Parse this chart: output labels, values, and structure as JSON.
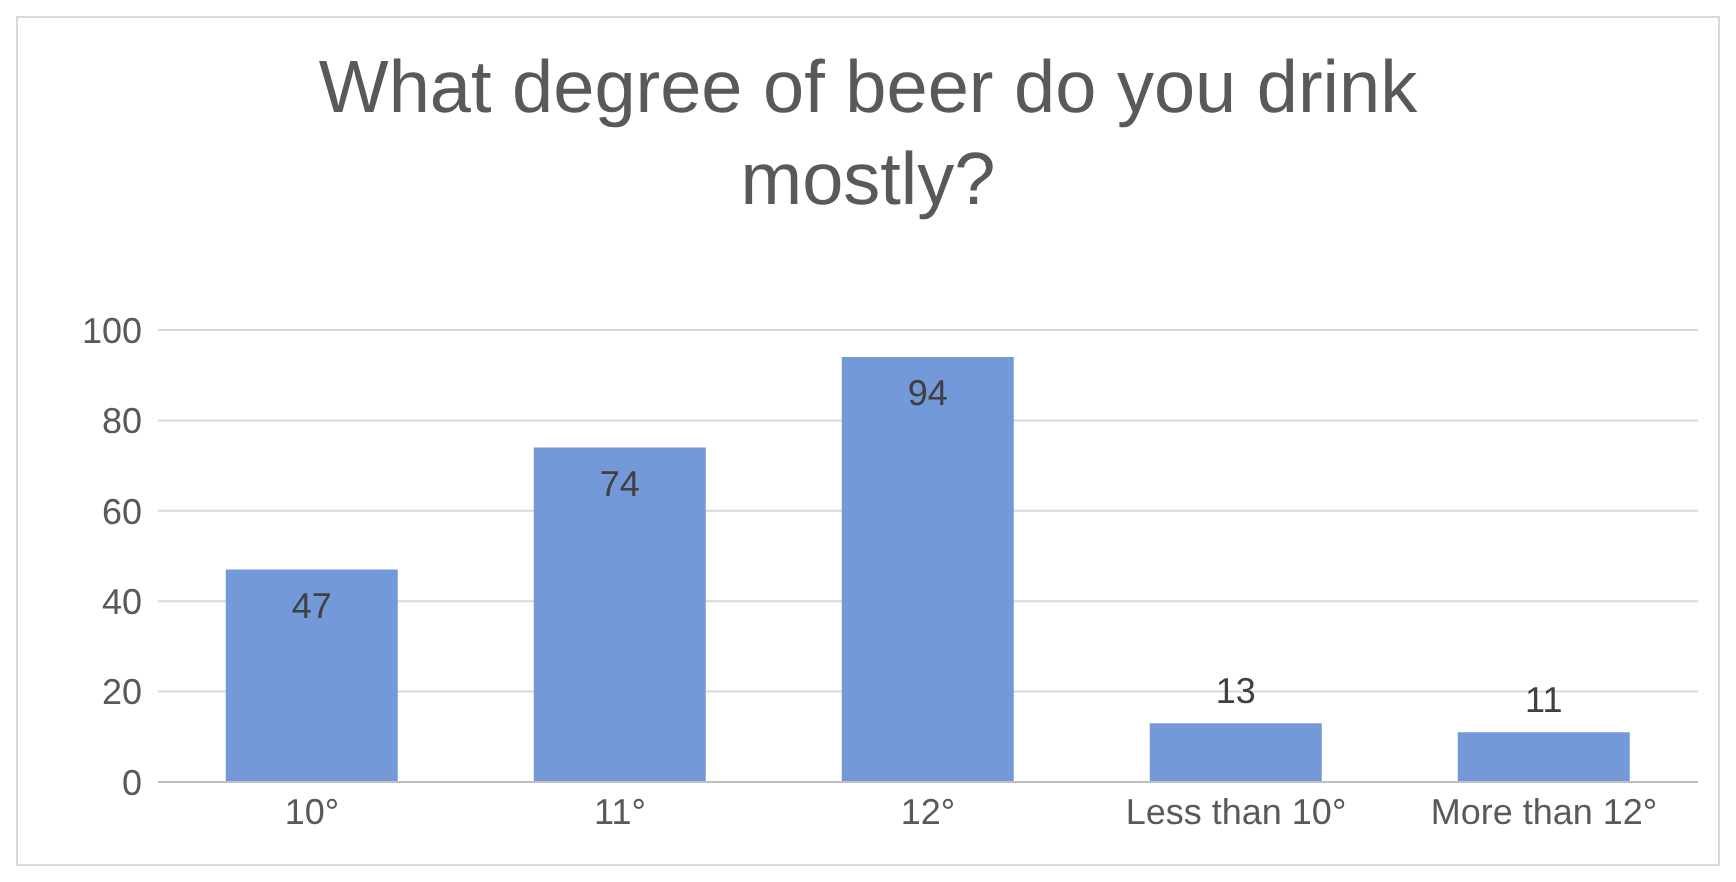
{
  "chart_data": {
    "type": "bar",
    "title": "What degree of beer do you drink mostly?",
    "categories": [
      "10°",
      "11°",
      "12°",
      "Less than 10°",
      "More than 12°"
    ],
    "values": [
      47,
      74,
      94,
      13,
      11
    ],
    "color": "#7399d9",
    "ylim": [
      0,
      100
    ],
    "yticks": [
      0,
      20,
      40,
      60,
      80,
      100
    ],
    "grid": "y",
    "data_labels": true
  }
}
